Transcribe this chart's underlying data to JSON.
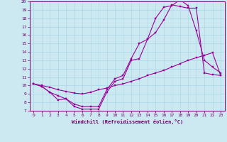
{
  "xlabel": "Windchill (Refroidissement éolien,°C)",
  "background_color": "#cce8f0",
  "line_color": "#990099",
  "xlim": [
    -0.5,
    23.5
  ],
  "ylim": [
    7,
    20
  ],
  "xticks": [
    0,
    1,
    2,
    3,
    4,
    5,
    6,
    7,
    8,
    9,
    10,
    11,
    12,
    13,
    14,
    15,
    16,
    17,
    18,
    19,
    20,
    21,
    22,
    23
  ],
  "yticks": [
    7,
    8,
    9,
    10,
    11,
    12,
    13,
    14,
    15,
    16,
    17,
    18,
    19,
    20
  ],
  "line1_x": [
    0,
    1,
    2,
    3,
    4,
    5,
    6,
    7,
    8,
    9,
    10,
    11,
    12,
    13,
    14,
    15,
    16,
    17,
    18,
    19,
    20,
    21,
    22,
    23
  ],
  "line1_y": [
    10.2,
    9.9,
    9.2,
    8.3,
    8.4,
    7.5,
    7.2,
    7.2,
    7.2,
    9.2,
    10.5,
    10.8,
    13.0,
    13.2,
    15.5,
    16.3,
    17.8,
    19.6,
    19.4,
    19.2,
    19.2,
    11.5,
    11.3,
    11.2
  ],
  "line2_x": [
    0,
    1,
    2,
    3,
    4,
    5,
    6,
    7,
    8,
    9,
    10,
    11,
    12,
    13,
    14,
    15,
    16,
    17,
    18,
    19,
    20,
    21,
    22,
    23
  ],
  "line2_y": [
    10.2,
    9.9,
    9.2,
    8.8,
    8.4,
    7.8,
    7.5,
    7.5,
    7.5,
    9.5,
    10.8,
    11.2,
    13.2,
    15.0,
    15.5,
    18.0,
    19.3,
    19.5,
    20.2,
    19.5,
    16.5,
    13.0,
    12.2,
    11.5
  ],
  "line3_x": [
    0,
    1,
    2,
    3,
    4,
    5,
    6,
    7,
    8,
    9,
    10,
    11,
    12,
    13,
    14,
    15,
    16,
    17,
    18,
    19,
    20,
    21,
    22,
    23
  ],
  "line3_y": [
    10.2,
    10.0,
    9.8,
    9.5,
    9.3,
    9.1,
    9.0,
    9.2,
    9.5,
    9.7,
    10.0,
    10.2,
    10.5,
    10.8,
    11.2,
    11.5,
    11.8,
    12.2,
    12.6,
    13.0,
    13.3,
    13.6,
    13.9,
    11.2
  ]
}
